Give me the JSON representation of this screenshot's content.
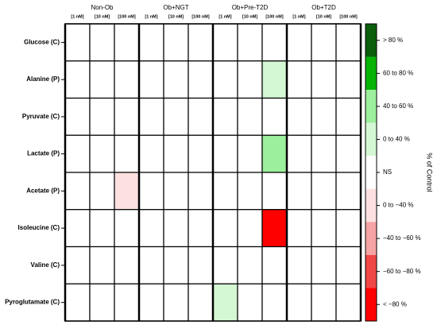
{
  "chart_data": {
    "type": "heatmap",
    "groups": [
      "Non-Ob",
      "Ob+NGT",
      "Ob+Pre-T2D",
      "Ob+T2D"
    ],
    "subcolumns": [
      "[1 nM]",
      "[10 nM]",
      "[100 nM]"
    ],
    "rows": [
      "Glucose (C)",
      "Alanine (P)",
      "Pyruvate (C)",
      "Lactate (P)",
      "Acetate (P)",
      "Isoleucine (C)",
      "Valine (C)",
      "Pyroglutamate (C)"
    ],
    "values": [
      [
        "NS",
        "NS",
        "NS",
        "NS",
        "NS",
        "NS",
        "NS",
        "NS",
        "NS",
        "NS",
        "NS",
        "NS"
      ],
      [
        "NS",
        "NS",
        "NS",
        "NS",
        "NS",
        "NS",
        "NS",
        "NS",
        "0 to 40 %",
        "NS",
        "NS",
        "NS"
      ],
      [
        "NS",
        "NS",
        "NS",
        "NS",
        "NS",
        "NS",
        "NS",
        "NS",
        "NS",
        "NS",
        "NS",
        "NS"
      ],
      [
        "NS",
        "NS",
        "NS",
        "NS",
        "NS",
        "NS",
        "NS",
        "NS",
        "40 to 60 %",
        "NS",
        "NS",
        "NS"
      ],
      [
        "NS",
        "NS",
        "0 to −40 %",
        "NS",
        "NS",
        "NS",
        "NS",
        "NS",
        "NS",
        "NS",
        "NS",
        "NS"
      ],
      [
        "NS",
        "NS",
        "NS",
        "NS",
        "NS",
        "NS",
        "NS",
        "NS",
        "< −80 %",
        "NS",
        "NS",
        "NS"
      ],
      [
        "NS",
        "NS",
        "NS",
        "NS",
        "NS",
        "NS",
        "NS",
        "NS",
        "NS",
        "NS",
        "NS",
        "NS"
      ],
      [
        "NS",
        "NS",
        "NS",
        "NS",
        "NS",
        "NS",
        "0 to 40 %",
        "NS",
        "NS",
        "NS",
        "NS",
        "NS"
      ]
    ],
    "legend": [
      {
        "label": "> 80 %",
        "color": "#0b5e0b"
      },
      {
        "label": "60 to 80 %",
        "color": "#06b406"
      },
      {
        "label": "40 to 60 %",
        "color": "#9cef9c"
      },
      {
        "label": "0 to 40 %",
        "color": "#d4f7d4"
      },
      {
        "label": "NS",
        "color": "#ffffff"
      },
      {
        "label": "0 to −40 %",
        "color": "#fde0e0"
      },
      {
        "label": "−40 to −60 %",
        "color": "#f6a3a3"
      },
      {
        "label": "−60 to −80 %",
        "color": "#f14646"
      },
      {
        "label": "< −80 %",
        "color": "#ff0000"
      }
    ],
    "legend_title": "% of Control"
  }
}
